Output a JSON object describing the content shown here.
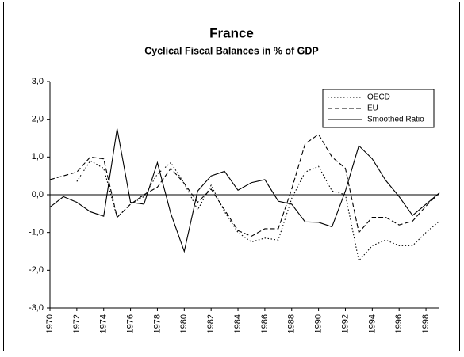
{
  "chart_data": {
    "type": "line",
    "title": "France",
    "subtitle": "Cyclical Fiscal Balances in % of GDP",
    "x": [
      1970,
      1971,
      1972,
      1973,
      1974,
      1975,
      1976,
      1977,
      1978,
      1979,
      1980,
      1981,
      1982,
      1983,
      1984,
      1985,
      1986,
      1987,
      1988,
      1989,
      1990,
      1991,
      1992,
      1993,
      1994,
      1995,
      1996,
      1997,
      1998,
      1999
    ],
    "series": [
      {
        "name": "OECD",
        "color": "#000000",
        "style": "dotted",
        "values": [
          null,
          null,
          0.35,
          0.9,
          0.7,
          -0.6,
          -0.25,
          -0.05,
          0.55,
          0.85,
          0.3,
          -0.4,
          0.25,
          -0.45,
          -1.0,
          -1.25,
          -1.15,
          -1.2,
          -0.1,
          0.6,
          0.75,
          0.1,
          0.0,
          -1.75,
          -1.35,
          -1.2,
          -1.35,
          -1.35,
          -1.0,
          -0.7
        ]
      },
      {
        "name": "EU",
        "color": "#000000",
        "style": "dashed",
        "values": [
          0.4,
          0.5,
          0.6,
          1.0,
          0.95,
          -0.6,
          -0.25,
          0.0,
          0.2,
          0.7,
          0.3,
          -0.2,
          0.15,
          -0.4,
          -0.95,
          -1.1,
          -0.9,
          -0.9,
          0.15,
          1.35,
          1.6,
          1.0,
          0.7,
          -1.0,
          -0.6,
          -0.6,
          -0.8,
          -0.7,
          -0.3,
          0.05
        ]
      },
      {
        "name": "Smoothed Ratio",
        "color": "#000000",
        "style": "solid",
        "values": [
          -0.33,
          -0.05,
          -0.2,
          -0.45,
          -0.57,
          1.75,
          -0.2,
          -0.25,
          0.85,
          -0.5,
          -1.5,
          0.1,
          0.5,
          0.62,
          0.12,
          0.32,
          0.4,
          -0.17,
          -0.25,
          -0.72,
          -0.73,
          -0.85,
          0.1,
          1.3,
          0.95,
          0.38,
          -0.05,
          -0.55,
          -0.25,
          0.05
        ]
      }
    ],
    "xlim": [
      1970,
      1999
    ],
    "xticks": [
      1970,
      1972,
      1974,
      1976,
      1978,
      1980,
      1982,
      1984,
      1986,
      1988,
      1990,
      1992,
      1994,
      1996,
      1998
    ],
    "ylim": [
      -3,
      3
    ],
    "yticks": [
      {
        "value": -3,
        "label": "-3,0"
      },
      {
        "value": -2,
        "label": "-2,0"
      },
      {
        "value": -1,
        "label": "-1,0"
      },
      {
        "value": 0,
        "label": "0,0"
      },
      {
        "value": 1,
        "label": "1,0"
      },
      {
        "value": 2,
        "label": "2,0"
      },
      {
        "value": 3,
        "label": "3,0"
      }
    ],
    "zero_line": true,
    "legend": "top-right"
  }
}
